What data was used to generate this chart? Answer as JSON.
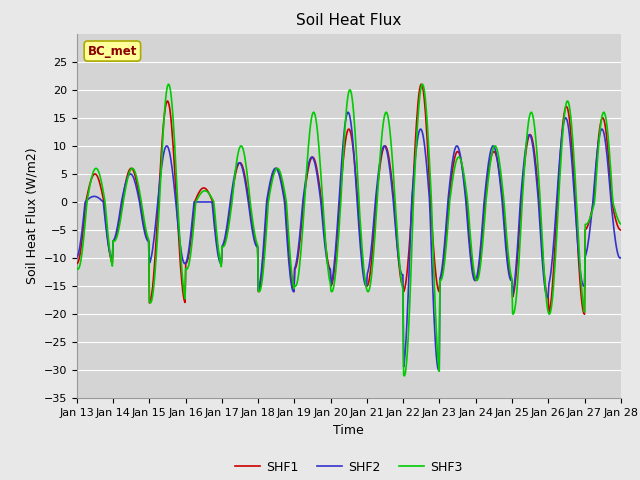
{
  "title": "Soil Heat Flux",
  "xlabel": "Time",
  "ylabel": "Soil Heat Flux (W/m2)",
  "ylim": [
    -35,
    30
  ],
  "yticks": [
    -35,
    -30,
    -25,
    -20,
    -15,
    -10,
    -5,
    0,
    5,
    10,
    15,
    20,
    25
  ],
  "fig_bg_color": "#e8e8e8",
  "plot_bg_color": "#d4d4d4",
  "legend_label": "BC_met",
  "legend_text_color": "#8b0000",
  "legend_box_facecolor": "#ffff99",
  "legend_box_edgecolor": "#aaaa00",
  "series": [
    "SHF1",
    "SHF2",
    "SHF3"
  ],
  "colors": [
    "#cc0000",
    "#3333cc",
    "#00cc00"
  ],
  "start_day": 13,
  "end_day": 28,
  "num_days": 15,
  "points_per_day": 48,
  "grid_color": "#ffffff",
  "tick_fontsize": 8,
  "label_fontsize": 9,
  "title_fontsize": 11,
  "linewidth": 1.2,
  "peak_amps_shf1": [
    5,
    6,
    18,
    2.5,
    7,
    6,
    8,
    13,
    10,
    21,
    9,
    9,
    12,
    17,
    15
  ],
  "trough_amps_shf1": [
    -11,
    -7,
    -18,
    -11,
    -8,
    -16,
    -12,
    -15,
    -15,
    -16,
    -14,
    -14,
    -17,
    -20,
    -5
  ],
  "peak_amps_shf2": [
    1,
    5,
    10,
    0,
    7,
    6,
    8,
    16,
    10,
    13,
    10,
    10,
    12,
    15,
    13
  ],
  "trough_amps_shf2": [
    -10,
    -7,
    -11,
    -11,
    -8,
    -16,
    -12,
    -15,
    -13,
    -30,
    -14,
    -14,
    -17,
    -15,
    -10
  ],
  "peak_amps_shf3": [
    6,
    6,
    21,
    2,
    10,
    6,
    16,
    20,
    16,
    21,
    8,
    10,
    16,
    18,
    16
  ],
  "trough_amps_shf3": [
    -12,
    -7,
    -18,
    -12,
    -8,
    -16,
    -15,
    -16,
    -16,
    -31,
    -14,
    -14,
    -20,
    -20,
    -4
  ]
}
